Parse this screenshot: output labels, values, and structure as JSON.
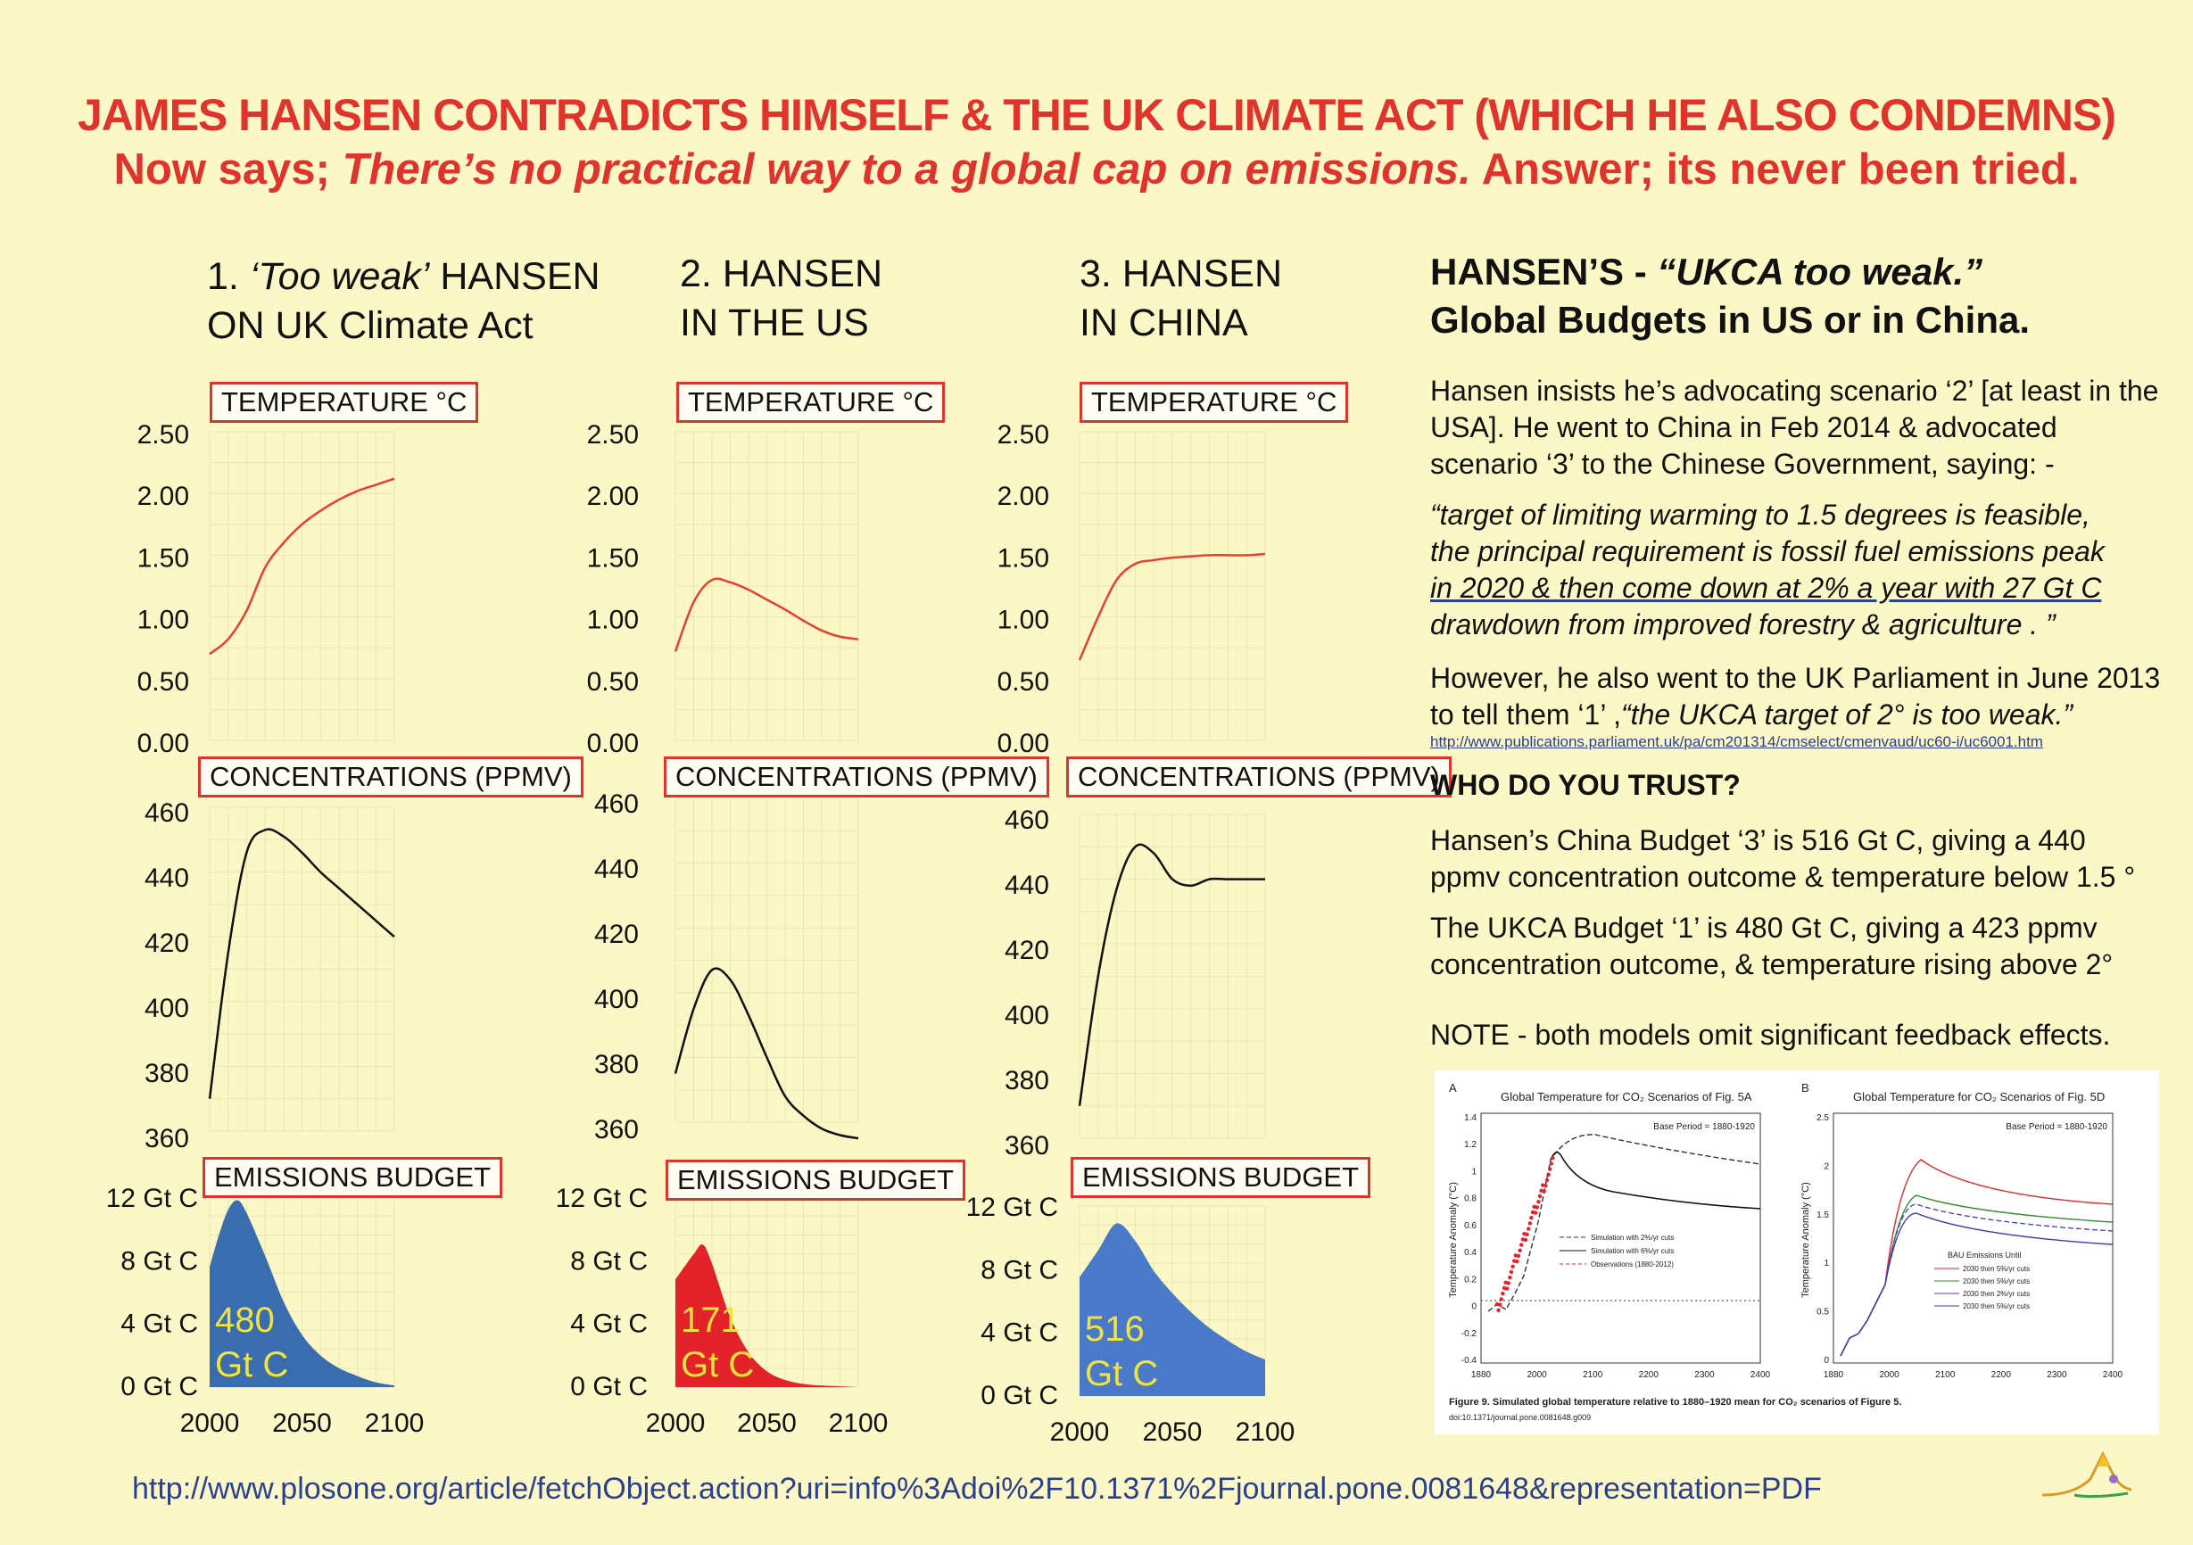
{
  "header": {
    "title": "JAMES HANSEN CONTRADICTS HIMSELF & THE UK CLIMATE ACT (WHICH HE ALSO CONDEMNS)",
    "subtitle_lead": "Now says; ",
    "subtitle_italic": "There’s no practical way to a global cap on emissions.",
    "subtitle_tail": " Answer; its never been tried."
  },
  "columns": [
    {
      "num": "1. ",
      "italic": "‘Too weak’",
      "line1_rest": " HANSEN",
      "line2": "ON UK Climate Act"
    },
    {
      "num": "2. ",
      "italic": "",
      "line1_rest": "HANSEN",
      "line2": "IN THE US"
    },
    {
      "num": "3. ",
      "italic": "",
      "line1_rest": "HANSEN",
      "line2": "IN CHINA"
    }
  ],
  "panel_titles": {
    "temperature": "TEMPERATURE °C",
    "concentrations": "CONCENTRATIONS (PPMV)",
    "emissions": "EMISSIONS BUDGET"
  },
  "chart_data": [
    {
      "type": "line",
      "title": "TEMPERATURE °C",
      "column": 1,
      "color": "#e8402c",
      "yticks": [
        "2.50",
        "2.00",
        "1.50",
        "1.00",
        "0.50",
        "0.00"
      ],
      "ylim": [
        0,
        2.5
      ],
      "xlim": [
        2000,
        2100
      ],
      "x": [
        2000,
        2010,
        2020,
        2030,
        2040,
        2050,
        2060,
        2070,
        2080,
        2090,
        2100
      ],
      "y": [
        0.7,
        0.82,
        1.05,
        1.4,
        1.6,
        1.75,
        1.86,
        1.95,
        2.02,
        2.07,
        2.12
      ]
    },
    {
      "type": "line",
      "title": "TEMPERATURE °C",
      "column": 2,
      "color": "#e8402c",
      "yticks": [
        "2.50",
        "2.00",
        "1.50",
        "1.00",
        "0.50",
        "0.00"
      ],
      "ylim": [
        0,
        2.5
      ],
      "xlim": [
        2000,
        2100
      ],
      "x": [
        2000,
        2010,
        2020,
        2030,
        2040,
        2050,
        2060,
        2070,
        2080,
        2090,
        2100
      ],
      "y": [
        0.72,
        1.12,
        1.3,
        1.28,
        1.22,
        1.14,
        1.06,
        0.97,
        0.89,
        0.84,
        0.82
      ]
    },
    {
      "type": "line",
      "title": "TEMPERATURE °C",
      "column": 3,
      "color": "#e8402c",
      "yticks": [
        "2.50",
        "2.00",
        "1.50",
        "1.00",
        "0.50",
        "0.00"
      ],
      "ylim": [
        0,
        2.5
      ],
      "xlim": [
        2000,
        2100
      ],
      "x": [
        2000,
        2010,
        2020,
        2030,
        2040,
        2050,
        2060,
        2070,
        2080,
        2090,
        2100
      ],
      "y": [
        0.65,
        1.0,
        1.3,
        1.43,
        1.46,
        1.48,
        1.49,
        1.5,
        1.5,
        1.5,
        1.51
      ]
    },
    {
      "type": "line",
      "title": "CONCENTRATIONS (PPMV)",
      "column": 1,
      "color": "#111111",
      "yticks": [
        "460",
        "440",
        "420",
        "400",
        "380",
        "360"
      ],
      "ylim": [
        360,
        460
      ],
      "xlim": [
        2000,
        2100
      ],
      "x": [
        2000,
        2010,
        2020,
        2030,
        2040,
        2050,
        2060,
        2070,
        2080,
        2090,
        2100
      ],
      "y": [
        370,
        415,
        446,
        453,
        451,
        446,
        440,
        435,
        430,
        425,
        420
      ]
    },
    {
      "type": "line",
      "title": "CONCENTRATIONS (PPMV)",
      "column": 2,
      "color": "#111111",
      "yticks": [
        "460",
        "440",
        "420",
        "400",
        "380",
        "360"
      ],
      "ylim": [
        360,
        460
      ],
      "xlim": [
        2000,
        2100
      ],
      "x": [
        2000,
        2010,
        2020,
        2030,
        2040,
        2050,
        2060,
        2070,
        2080,
        2090,
        2100
      ],
      "y": [
        375,
        395,
        407,
        404,
        393,
        380,
        368,
        362,
        358,
        356,
        355
      ]
    },
    {
      "type": "line",
      "title": "CONCENTRATIONS (PPMV)",
      "column": 3,
      "color": "#111111",
      "yticks": [
        "460",
        "440",
        "420",
        "400",
        "380",
        "360"
      ],
      "ylim": [
        360,
        460
      ],
      "xlim": [
        2000,
        2100
      ],
      "x": [
        2000,
        2010,
        2020,
        2030,
        2040,
        2050,
        2060,
        2070,
        2080,
        2090,
        2100
      ],
      "y": [
        370,
        410,
        437,
        450,
        448,
        440,
        438,
        440,
        440,
        440,
        440
      ]
    },
    {
      "type": "area",
      "title": "EMISSIONS BUDGET",
      "column": 1,
      "color": "#3a6cb0",
      "label": "480",
      "label2": "Gt C",
      "label_color": "#f2e33c",
      "yticks": [
        "12 Gt C",
        "8 Gt C",
        "4 Gt C",
        "0 Gt C"
      ],
      "ylim": [
        0,
        12
      ],
      "xlim": [
        2000,
        2100
      ],
      "xticks": [
        "2000",
        "2050",
        "2100"
      ],
      "x": [
        2000,
        2005,
        2010,
        2015,
        2020,
        2030,
        2040,
        2050,
        2060,
        2070,
        2080,
        2090,
        2100
      ],
      "y": [
        7.6,
        9.6,
        11.2,
        11.8,
        11.0,
        8.3,
        5.4,
        3.3,
        2.0,
        1.2,
        0.7,
        0.3,
        0.1
      ]
    },
    {
      "type": "area",
      "title": "EMISSIONS BUDGET",
      "column": 2,
      "color": "#e3222a",
      "label": "171",
      "label2": "Gt C",
      "label_color": "#f2e33c",
      "yticks": [
        "12 Gt C",
        "8 Gt C",
        "4 Gt C",
        "0 Gt C"
      ],
      "ylim": [
        0,
        12
      ],
      "xlim": [
        2000,
        2100
      ],
      "xticks": [
        "2000",
        "2050",
        "2100"
      ],
      "x": [
        2000,
        2010,
        2015,
        2020,
        2030,
        2040,
        2050,
        2060,
        2070,
        2080,
        2090,
        2100
      ],
      "y": [
        6.8,
        8.4,
        9.0,
        7.8,
        4.4,
        2.2,
        1.0,
        0.45,
        0.2,
        0.1,
        0.05,
        0.0
      ]
    },
    {
      "type": "area",
      "title": "EMISSIONS BUDGET",
      "column": 3,
      "color": "#4a79c9",
      "label": "516",
      "label2": "Gt C",
      "label_color": "#f2e33c",
      "yticks": [
        "12 Gt C",
        "8 Gt C",
        "4 Gt C",
        "0 Gt C"
      ],
      "ylim": [
        0,
        12
      ],
      "xlim": [
        2000,
        2100
      ],
      "xticks": [
        "2000",
        "2050",
        "2100"
      ],
      "x": [
        2000,
        2010,
        2020,
        2030,
        2040,
        2050,
        2060,
        2070,
        2080,
        2090,
        2100
      ],
      "y": [
        7.5,
        9.2,
        10.9,
        9.8,
        7.9,
        6.5,
        5.3,
        4.3,
        3.5,
        2.8,
        2.3
      ]
    }
  ],
  "right": {
    "heading_line1_plain": "HANSEN’S - ",
    "heading_line1_italic": "“UKCA too weak.”",
    "heading_line2": "Global Budgets in US or in China.",
    "para1": "Hansen insists he’s advocating scenario ‘2’ [at least in the USA].  He went to China in Feb 2014 & advocated scenario ‘3’ to the Chinese Government, saying: -",
    "quote_line1": "“target of limiting warming to 1.5 degrees is feasible,",
    "quote_line2": "the principal requirement is fossil fuel emissions  peak",
    "quote_line3": "in 2020 & then come down at 2% a year with 27 Gt C",
    "quote_line4": "drawdown from improved forestry & agriculture . ”",
    "para3_plain": "However, he also went to the UK Parliament in June 2013 to tell them ‘1’ ,",
    "para3_italic": "“the UKCA target of 2° is too weak.”",
    "small_link": "http://www.publications.parliament.uk/pa/cm201314/cmselect/cmenvaud/uc60-i/uc6001.htm",
    "trust": "WHO DO YOU TRUST?",
    "para4": "Hansen’s China Budget ‘3’ is 516 Gt C, giving a 440 ppmv concentration outcome & temperature below 1.5 °",
    "para5": "The UKCA Budget ‘1’ is 480 Gt C, giving a 423 ppmv concentration outcome, & temperature rising above 2°",
    "note": "NOTE - both models omit significant feedback effects."
  },
  "inset": {
    "panel_a_letter": "A",
    "panel_a_title": "Global Temperature for CO₂ Scenarios of Fig. 5A",
    "panel_b_letter": "B",
    "panel_b_title": "Global Temperature for CO₂ Scenarios of Fig. 5D",
    "base_period": "Base Period = 1880-1920",
    "ylabel": "Temperature Anomaly (°C)",
    "a_yticks": [
      "1.4",
      "1.2",
      "1",
      "0.8",
      "0.6",
      "0.4",
      "0.2",
      "0",
      "-0.2",
      "-0.4"
    ],
    "b_yticks": [
      "2.5",
      "2",
      "1.5",
      "1",
      "0.5",
      "0"
    ],
    "a_xticks": [
      "1880",
      "2000",
      "2100",
      "2200",
      "2300",
      "2400"
    ],
    "b_xticks": [
      "1880",
      "2000",
      "2100",
      "2200",
      "2300",
      "2400"
    ],
    "legend_a": [
      "Simulation with 2%/yr cuts",
      "Simulation with 6%/yr cuts",
      "Observations (1880-2012)"
    ],
    "legend_b_title": "BAU Emissions Until",
    "legend_b": [
      "2030 then 5%/yr cuts",
      "2030 then 5%/yr cuts",
      "2030 then 2%/yr cuts",
      "2030 then 5%/yr cuts"
    ],
    "caption": "Figure 9. Simulated global temperature relative to 1880–1920 mean for CO₂ scenarios of Figure 5.",
    "doi": "doi:10.1371/journal.pone.0081648.g009"
  },
  "footer_url": "http://www.plosone.org/article/fetchObject.action?uri=info%3Adoi%2F10.1371%2Fjournal.pone.0081648&representation=PDF",
  "colors": {
    "red": "#e0332b",
    "background": "#fcf7c6",
    "link": "#2b3f8e"
  }
}
